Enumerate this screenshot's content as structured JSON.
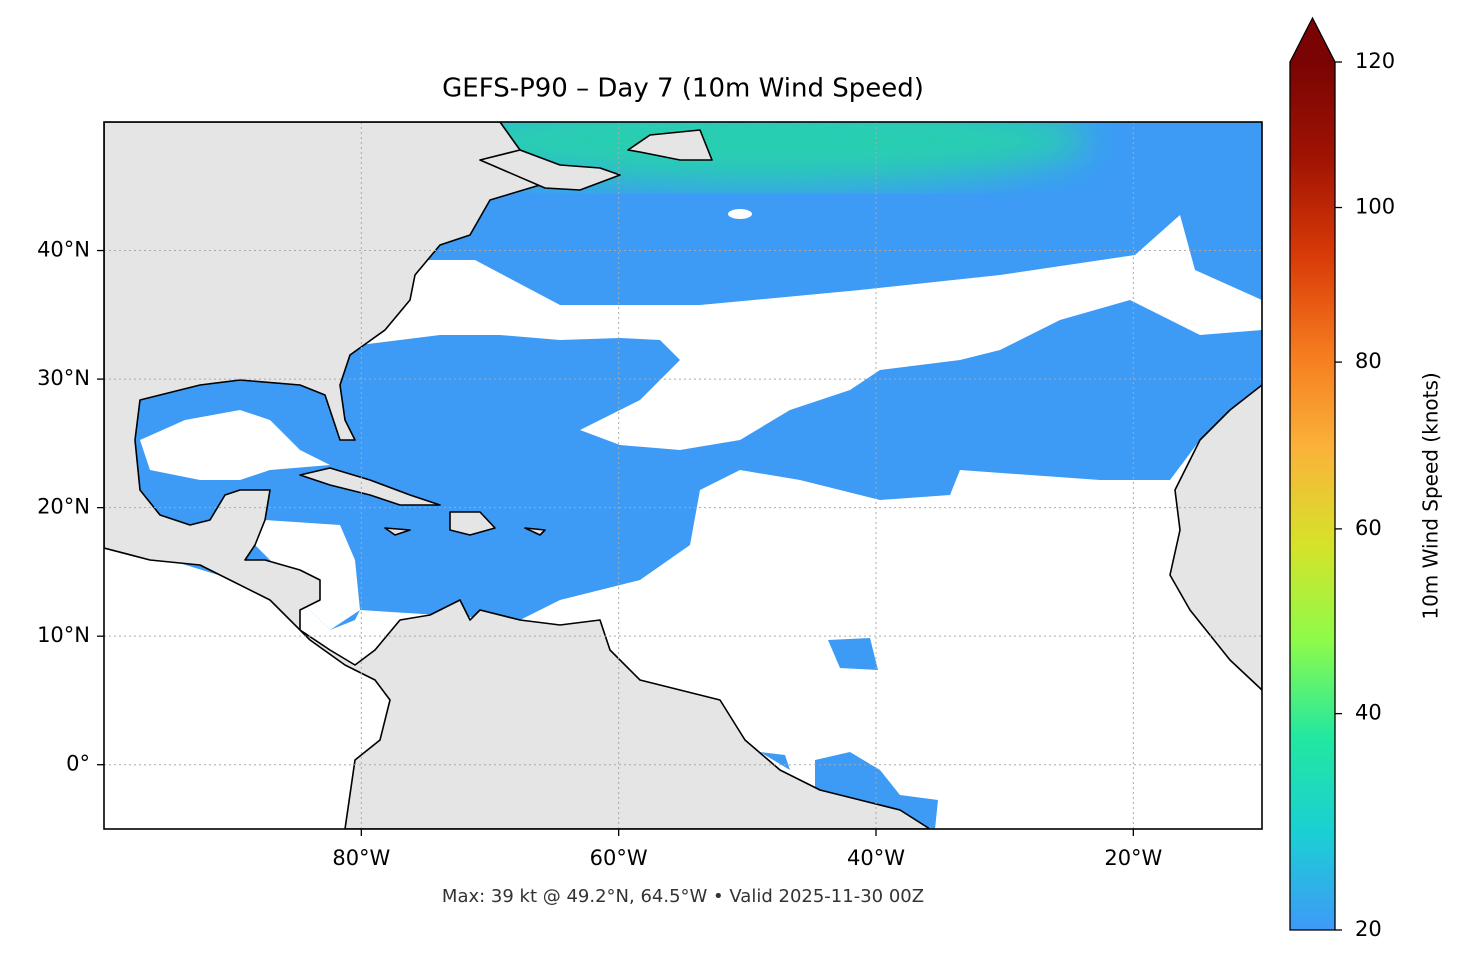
{
  "chart_data": {
    "type": "map",
    "title": "GEFS-P90 – Day 7 (10m Wind Speed)",
    "footer": "Max: 39 kt @ 49.2°N, 64.5°W • Valid 2025-11-30 00Z",
    "xlim": [
      -100,
      -10
    ],
    "ylim": [
      -5,
      50
    ],
    "xticks": [
      {
        "value": -80,
        "label": "80°W"
      },
      {
        "value": -60,
        "label": "60°W"
      },
      {
        "value": -40,
        "label": "40°W"
      },
      {
        "value": -20,
        "label": "20°W"
      }
    ],
    "yticks": [
      {
        "value": 0,
        "label": "0°"
      },
      {
        "value": 10,
        "label": "10°N"
      },
      {
        "value": 20,
        "label": "20°N"
      },
      {
        "value": 30,
        "label": "30°N"
      },
      {
        "value": 40,
        "label": "40°N"
      }
    ],
    "grid": true,
    "colorbar": {
      "label": "10m Wind Speed (knots)",
      "lim": [
        20,
        120
      ],
      "ticks": [
        20,
        40,
        60,
        80,
        100,
        120
      ],
      "norm": {
        "type": "power",
        "gamma": 0.7
      },
      "extend": "max",
      "colors": [
        "#3e9af8",
        "#1bcfd4",
        "#22e8a0",
        "#8efb4a",
        "#d6e22a",
        "#fbb23a",
        "#f57a1e",
        "#d83a08",
        "#a01303",
        "#7a0403"
      ]
    }
  }
}
